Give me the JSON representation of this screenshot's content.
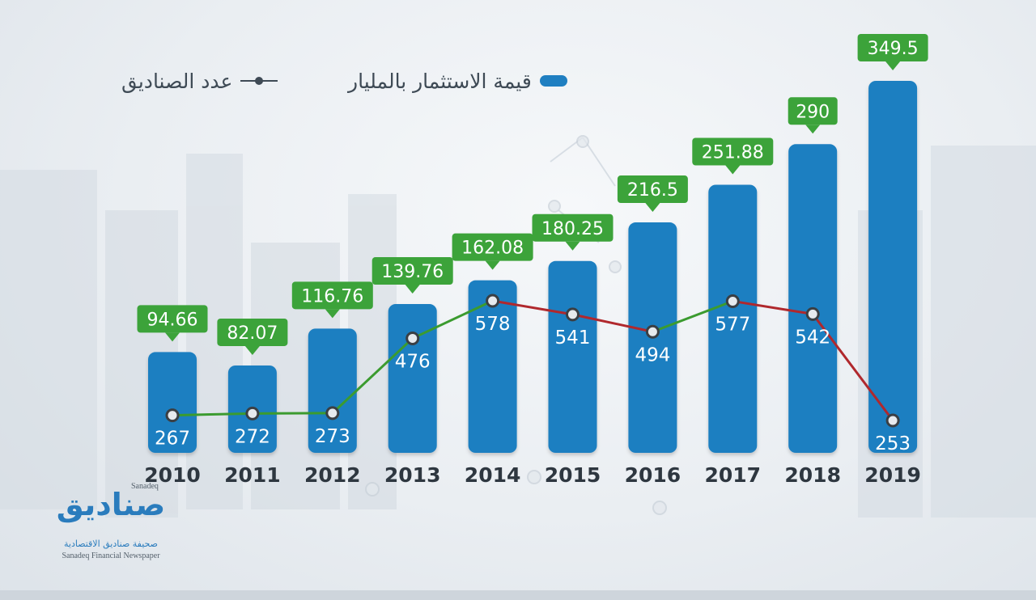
{
  "chart_data": {
    "type": "bar",
    "categories": [
      "2010",
      "2011",
      "2012",
      "2013",
      "2014",
      "2015",
      "2016",
      "2017",
      "2018",
      "2019"
    ],
    "series": [
      {
        "name": "قيمة الاستثمار بالمليار",
        "type": "bar",
        "values": [
          94.66,
          82.07,
          116.76,
          139.76,
          162.08,
          180.25,
          216.5,
          251.88,
          290,
          349.5
        ],
        "labels": [
          "94.66",
          "82.07",
          "116.76",
          "139.76",
          "162.08",
          "180.25",
          "216.5",
          "251.88",
          "290",
          "349.5"
        ],
        "color": "#1f7fc1"
      },
      {
        "name": "عدد الصناديق",
        "type": "line",
        "values": [
          267,
          272,
          273,
          476,
          578,
          541,
          494,
          577,
          542,
          253
        ],
        "labels": [
          "267",
          "272",
          "273",
          "476",
          "578",
          "541",
          "494",
          "577",
          "542",
          "253"
        ],
        "up_color": "#3b9b2f",
        "down_color": "#b0282d"
      }
    ],
    "y_bar_range": [
      0,
      400
    ],
    "y_line_range": [
      0,
      700
    ],
    "legend_position": "top-left",
    "grid": false,
    "label_badge_color": "#3ca33a"
  },
  "legend": {
    "bars_label": "قيمة الاستثمار بالمليار",
    "line_label": "عدد الصناديق"
  },
  "logo": {
    "name_ar": "صناديق",
    "name_en_small": "Sanadeq",
    "subtitle_ar": "صحيفة صناديق الاقتصادية",
    "subtitle_en": "Sanadeq Financial Newspaper"
  }
}
